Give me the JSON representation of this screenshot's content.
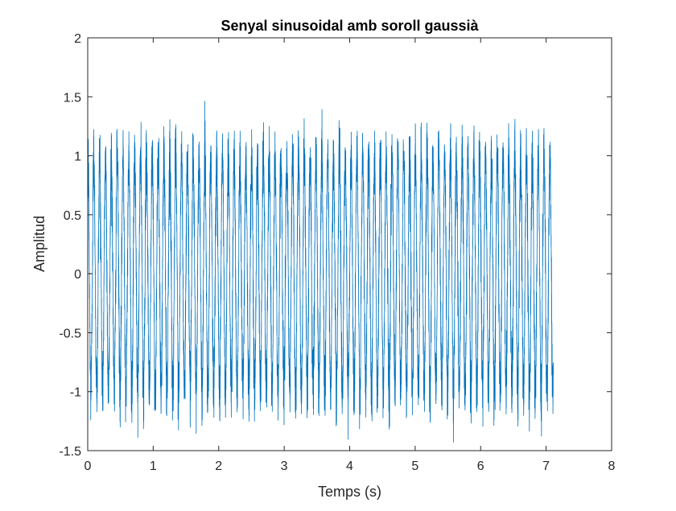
{
  "chart_data": {
    "type": "line",
    "title": "Senyal sinusoidal amb soroll gaussià",
    "xlabel": "Temps (s)",
    "ylabel": "Amplitud",
    "xlim": [
      0,
      8
    ],
    "ylim": [
      -1.5,
      2
    ],
    "xticks": [
      0,
      1,
      2,
      3,
      4,
      5,
      6,
      7,
      8
    ],
    "yticks": [
      -1.5,
      -1,
      -0.5,
      0,
      0.5,
      1,
      1.5,
      2
    ],
    "xtick_labels": [
      "0",
      "1",
      "2",
      "3",
      "4",
      "5",
      "6",
      "7",
      "8"
    ],
    "ytick_labels": [
      "-1.5",
      "-1",
      "-0.5",
      "0",
      "0.5",
      "1",
      "1.5",
      "2"
    ],
    "grid": false,
    "legend": null,
    "series": [
      {
        "color": "#0072bd",
        "description_signal": {
          "t_start": 0,
          "t_end": 7.11,
          "sine_frequency_hz": 11.2,
          "sine_amplitude": 1.0,
          "noise_model": "gaussian",
          "approx_peak_max": 1.75,
          "approx_peak_min": -1.43,
          "approx_typical_max": 1.45,
          "approx_typical_min": -1.35
        }
      }
    ]
  }
}
